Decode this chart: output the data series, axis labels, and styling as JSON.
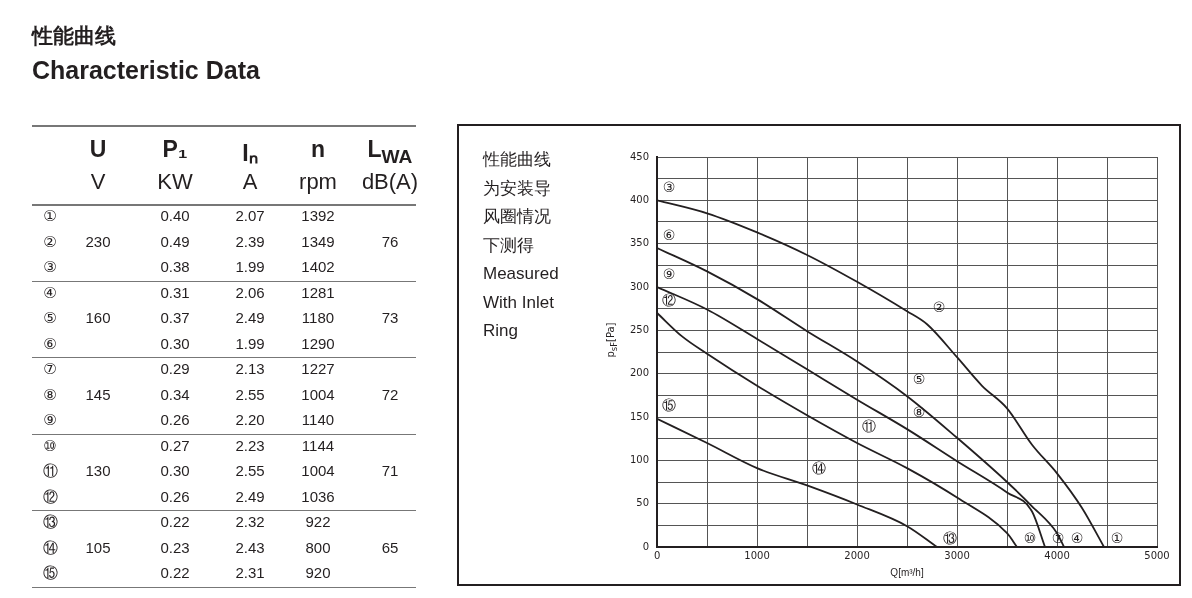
{
  "chart_data": [
    {
      "type": "other",
      "title": "性能曲线",
      "subtitle": "Characteristic Data",
      "annotations": [
        "\tU\tP₁\tIₙ\tn\tL$_{WA}$",
        "\tV\tKW\tA\trpm\tdB(A)",
        "①\t\t0.40\t2.07\t1392\t",
        "②\t230\t0.49\t2.39\t1349\t76",
        "③\t\t0.38\t1.99\t1402\t",
        "④\t\t0.31\t2.06\t1281\t",
        "⑤\t160\t0.37\t2.49\t1180\t73",
        "⑥\t\t0.30\t1.99\t1290\t",
        "⑦\t\t0.29\t2.13\t1227\t",
        "⑧\t145\t0.34\t2.55\t1004\t72",
        "⑨\t\t0.26\t2.20\t1140\t",
        "⑩\t\t0.27\t2.23\t1144\t",
        "⑪\t130\t0.30\t2.55\t1004\t71",
        "⑫\t\t0.26\t2.49\t1036\t",
        "⑬\t\t0.22\t2.32\t922\t",
        "⑭\t105\t0.23\t2.43\t800\t65",
        "⑮\t\t0.22\t2.31\t920\t"
      ]
    },
    {
      "type": "line",
      "xlabel": "Q[m³/h]",
      "ylabel": "p$_{sF}$[Pa]",
      "grid": true,
      "legend": false,
      "marker": "none",
      "line_style": "solid",
      "xlim": [
        0,
        5000
      ],
      "ylim": [
        0,
        450
      ],
      "xticks": [
        0,
        {
          "value": 500,
          "label": null
        },
        1000,
        {
          "value": 1500,
          "label": null
        },
        2000,
        {
          "value": 2500,
          "label": null
        },
        3000,
        {
          "value": 3500,
          "label": null
        },
        4000,
        {
          "value": 4500,
          "label": null
        },
        5000
      ],
      "yticks": [
        0,
        {
          "value": 25,
          "label": null
        },
        50,
        {
          "value": 75,
          "label": null
        },
        100,
        {
          "value": 125,
          "label": null
        },
        150,
        {
          "value": 175,
          "label": null
        },
        200,
        {
          "value": 225,
          "label": null
        },
        250,
        {
          "value": 275,
          "label": null
        },
        300,
        {
          "value": 325,
          "label": null
        },
        350,
        {
          "value": 375,
          "label": null
        },
        400,
        {
          "value": 425,
          "label": null
        },
        450
      ],
      "series": [
        {
          "color": "#231f20",
          "x": [
            0,
            500,
            1000,
            1500,
            2000,
            2500,
            2700,
            3000,
            3250,
            3500,
            3750,
            4000,
            4250,
            4470
          ],
          "values": [
            400,
            385,
            363,
            337,
            306,
            272,
            257,
            219,
            186,
            160,
            118,
            85,
            45,
            0
          ]
        },
        {
          "color": "#231f20",
          "x": [
            0,
            500,
            1000,
            1500,
            2000,
            2500,
            3000,
            3500,
            3750,
            4000,
            4070
          ],
          "values": [
            345,
            318,
            286,
            249,
            214,
            174,
            126,
            75,
            47,
            16,
            0
          ]
        },
        {
          "color": "#231f20",
          "x": [
            0,
            500,
            1000,
            1500,
            2000,
            2500,
            3000,
            3500,
            3750,
            3880
          ],
          "values": [
            300,
            274,
            240,
            205,
            170,
            136,
            99,
            63,
            41,
            0
          ]
        },
        {
          "color": "#231f20",
          "x": [
            0,
            250,
            500,
            1000,
            1500,
            2000,
            2500,
            3000,
            3500,
            3600
          ],
          "values": [
            270,
            243,
            223,
            186,
            152,
            120,
            91,
            57,
            16,
            0
          ]
        },
        {
          "color": "#231f20",
          "x": [
            0,
            500,
            1000,
            1500,
            2000,
            2500,
            2800
          ],
          "values": [
            148,
            120,
            91,
            71,
            49,
            24,
            0
          ]
        }
      ],
      "annotations": [
        "性能曲线为安装导风圈情况下测得",
        "Measured With Inlet Ring",
        "①",
        "②",
        "③",
        "④",
        "⑤",
        "⑥",
        "⑦",
        "⑧",
        "⑨",
        "⑩",
        "⑪",
        "⑫",
        "⑬",
        "⑭",
        "⑮"
      ]
    }
  ]
}
